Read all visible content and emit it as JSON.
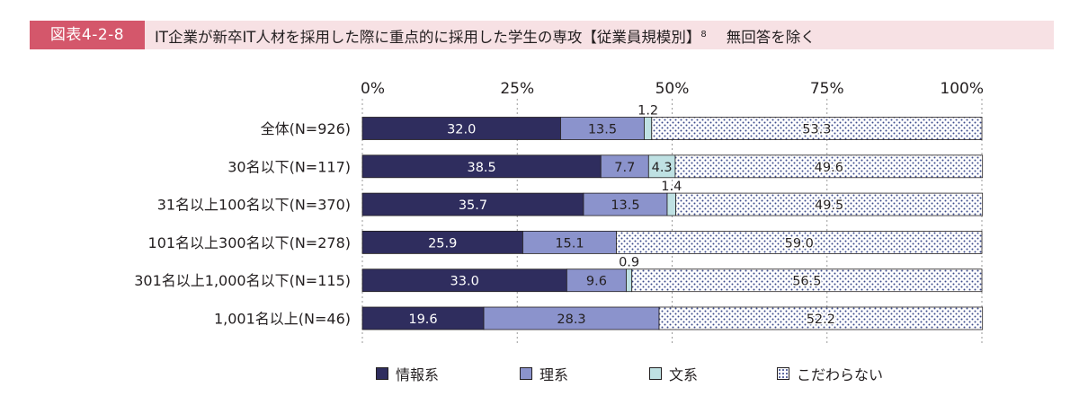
{
  "header": {
    "figure_label": "図表4-2-8",
    "title": "IT企業が新卒IT人材を採用した際に重点的に採用した学生の専攻【従業員規模別】",
    "footnote_mark": "8",
    "note": "無回答を除く"
  },
  "colors": {
    "header_label_bg": "#d4576b",
    "header_bg": "#f7e1e4",
    "info": "#2f2d5e",
    "science": "#8b93cc",
    "humanities": "#bfe1e3",
    "none": "#ffffff",
    "dot": "#3a4a8a"
  },
  "chart_data": {
    "type": "bar",
    "orientation": "horizontal",
    "stacked": true,
    "title": "IT企業が新卒IT人材を採用した際に重点的に採用した学生の専攻【従業員規模別】",
    "xlabel": "",
    "ylabel": "",
    "xlim": [
      0,
      100
    ],
    "ticks": [
      0,
      25,
      50,
      75,
      100
    ],
    "tick_labels": [
      "0%",
      "25%",
      "50%",
      "75%",
      "100%"
    ],
    "categories": [
      "全体(N=926)",
      "30名以下(N=117)",
      "31名以上100名以下(N=370)",
      "101名以上300名以下(N=278)",
      "301名以上1,000名以下(N=115)",
      "1,001名以上(N=46)"
    ],
    "series": [
      {
        "name": "情報系",
        "values": [
          32.0,
          38.5,
          35.7,
          25.9,
          33.0,
          19.6
        ],
        "labels": [
          "32.0",
          "38.5",
          "35.7",
          "25.9",
          "33.0",
          "19.6"
        ]
      },
      {
        "name": "理系",
        "values": [
          13.5,
          7.7,
          13.5,
          15.1,
          9.6,
          28.3
        ],
        "labels": [
          "13.5",
          "7.7",
          "13.5",
          "15.1",
          "9.6",
          "28.3"
        ]
      },
      {
        "name": "文系",
        "values": [
          1.2,
          4.3,
          1.4,
          0.0,
          0.9,
          0.0
        ],
        "labels": [
          "1.2",
          "4.3",
          "1.4",
          "",
          "0.9",
          ""
        ]
      },
      {
        "name": "こだわらない",
        "values": [
          53.3,
          49.6,
          49.5,
          59.0,
          56.5,
          52.2
        ],
        "labels": [
          "53.3",
          "49.6",
          "49.5",
          "59.0",
          "56.5",
          "52.2"
        ]
      }
    ],
    "legend": [
      "情報系",
      "理系",
      "文系",
      "こだわらない"
    ],
    "legend_position": "bottom"
  }
}
